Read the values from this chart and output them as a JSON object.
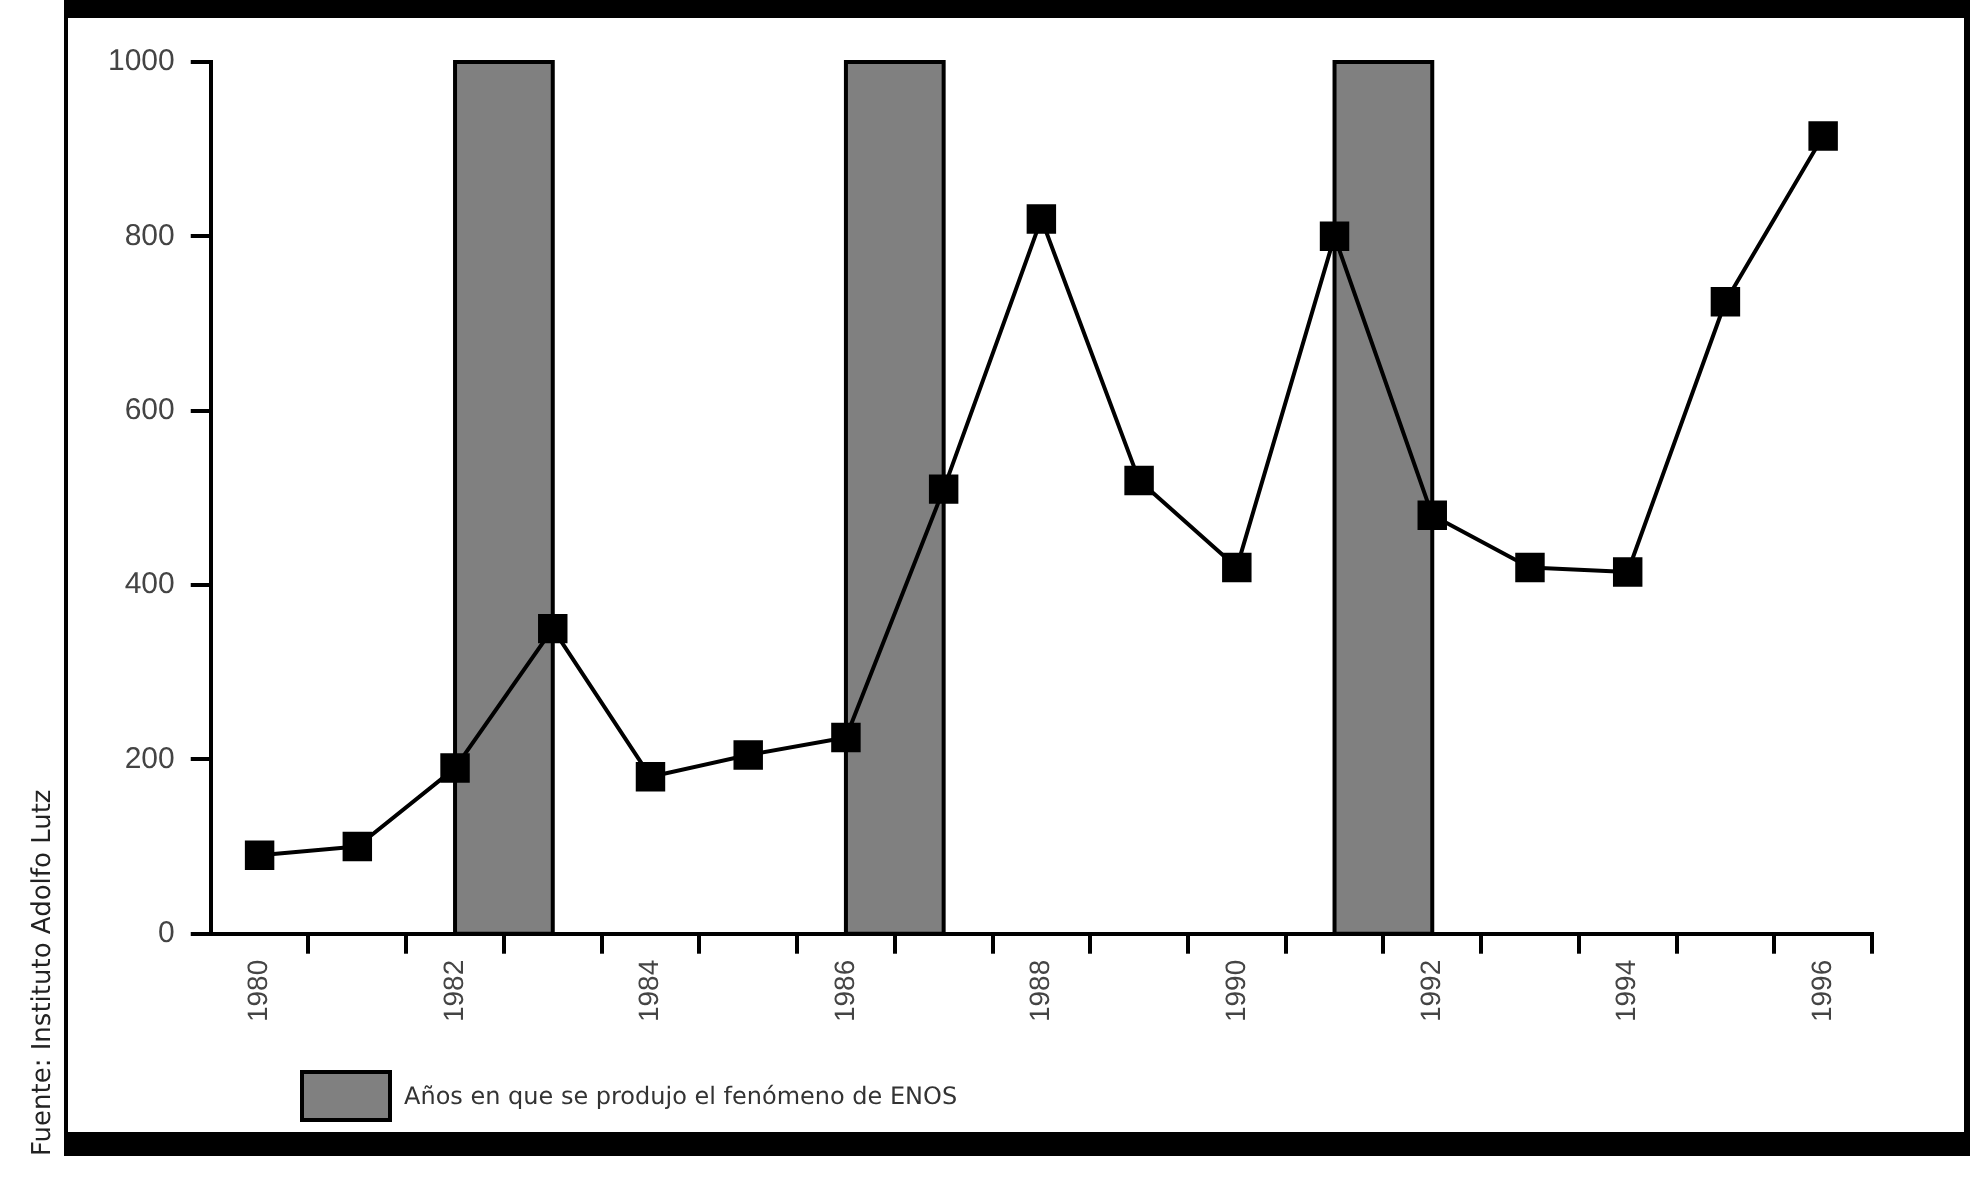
{
  "chart_data": {
    "type": "line",
    "x": [
      1980,
      1981,
      1982,
      1983,
      1984,
      1985,
      1986,
      1987,
      1988,
      1989,
      1990,
      1991,
      1992,
      1993,
      1994,
      1995,
      1996
    ],
    "series": [
      {
        "color": "#000000",
        "values": [
          90,
          100,
          190,
          350,
          180,
          205,
          225,
          510,
          820,
          520,
          420,
          800,
          480,
          420,
          415,
          725,
          915
        ]
      }
    ],
    "xlim": [
      1979.5,
      1996.5
    ],
    "xticks": [
      {
        "value": 1980,
        "label": "1980"
      },
      {
        "value": 1980.5,
        "label": null
      },
      {
        "value": 1981.5,
        "label": null
      },
      {
        "value": 1982,
        "label": "1982"
      },
      {
        "value": 1982.5,
        "label": null
      },
      {
        "value": 1983.5,
        "label": null
      },
      {
        "value": 1984,
        "label": "1984"
      },
      {
        "value": 1984.5,
        "label": null
      },
      {
        "value": 1985.5,
        "label": null
      },
      {
        "value": 1986,
        "label": "1986"
      },
      {
        "value": 1986.5,
        "label": null
      },
      {
        "value": 1987.5,
        "label": null
      },
      {
        "value": 1988,
        "label": "1988"
      },
      {
        "value": 1988.5,
        "label": null
      },
      {
        "value": 1989.5,
        "label": null
      },
      {
        "value": 1990,
        "label": "1990"
      },
      {
        "value": 1990.5,
        "label": null
      },
      {
        "value": 1991.5,
        "label": null
      },
      {
        "value": 1992,
        "label": "1992"
      },
      {
        "value": 1992.5,
        "label": null
      },
      {
        "value": 1993.5,
        "label": null
      },
      {
        "value": 1994,
        "label": "1994"
      },
      {
        "value": 1994.5,
        "label": null
      },
      {
        "value": 1995.5,
        "label": null
      },
      {
        "value": 1996,
        "label": "1996"
      },
      {
        "value": 1996.5,
        "label": null
      }
    ],
    "ylim": [
      0,
      1000
    ],
    "yticks": [
      0,
      200,
      400,
      600,
      800,
      1000
    ],
    "bands": [
      {
        "axis": "x",
        "from": 1982,
        "to": 1983,
        "label": "Años en que se produjo el fenómeno de ENOS",
        "color": "#808080"
      },
      {
        "axis": "x",
        "from": 1986,
        "to": 1987,
        "color": "#808080"
      },
      {
        "axis": "x",
        "from": 1991,
        "to": 1992,
        "color": "#808080"
      }
    ],
    "annotations": [
      "Fuente: Instituto Adolfo Lutz"
    ],
    "grid": false,
    "legend": "bottom",
    "marker": "square",
    "line_style": "solid"
  }
}
